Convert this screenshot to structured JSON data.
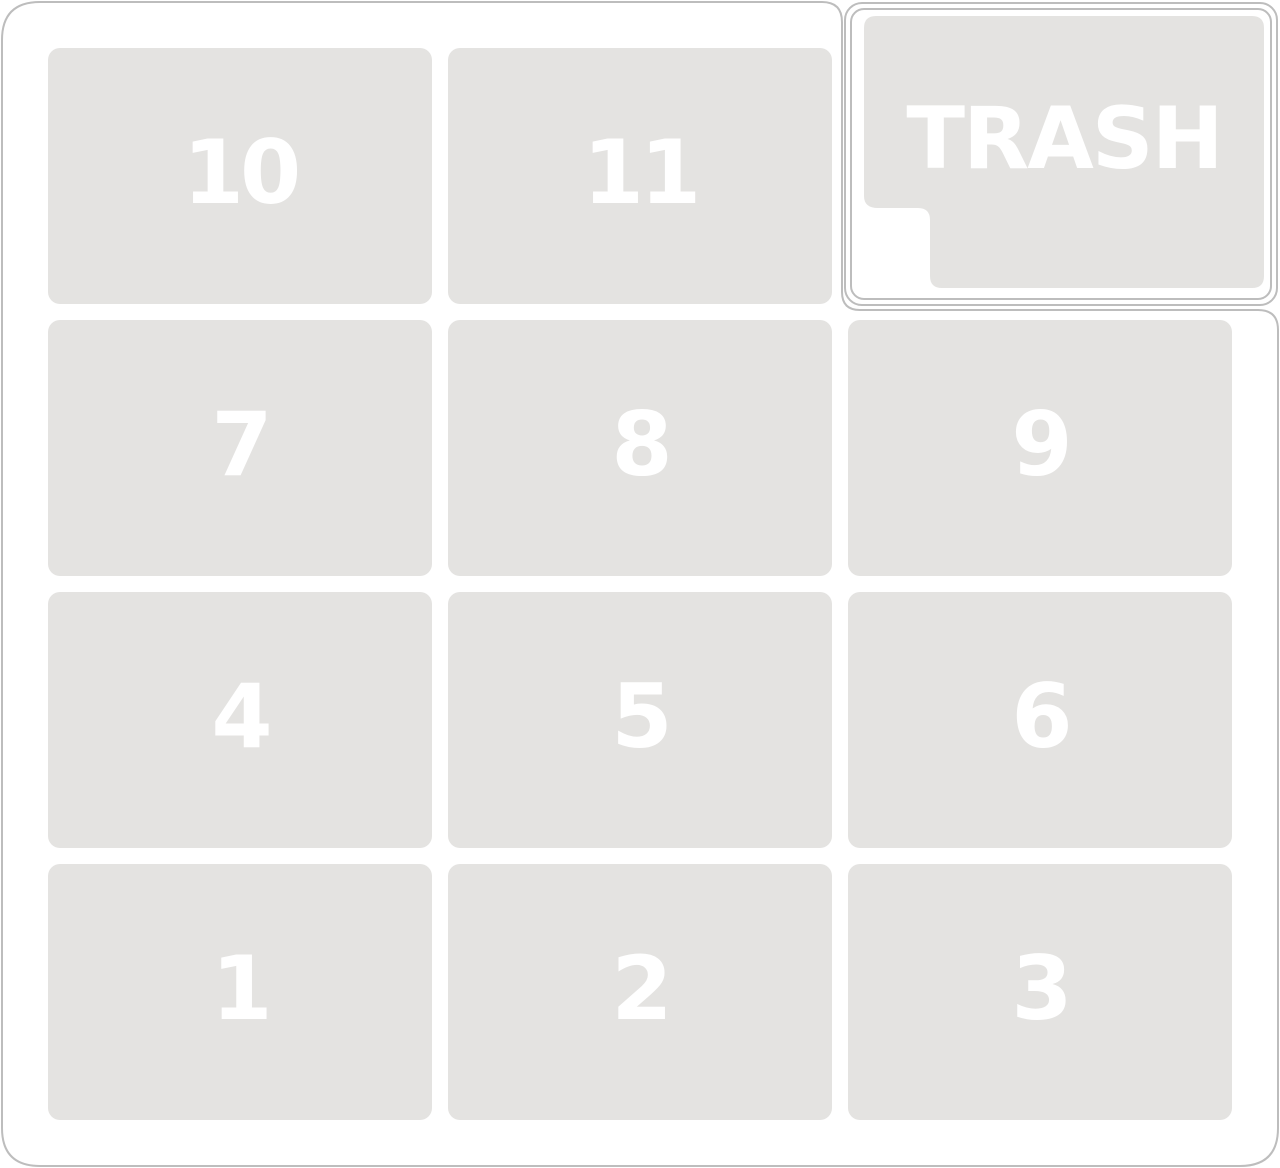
{
  "keypad": {
    "keys": [
      {
        "label": "10"
      },
      {
        "label": "11"
      },
      {
        "label": "7"
      },
      {
        "label": "8"
      },
      {
        "label": "9"
      },
      {
        "label": "4"
      },
      {
        "label": "5"
      },
      {
        "label": "6"
      },
      {
        "label": "1"
      },
      {
        "label": "2"
      },
      {
        "label": "3"
      }
    ]
  },
  "trash": {
    "label": "TRASH"
  },
  "colors": {
    "key_fill": "#e4e3e1",
    "key_text": "#ffffff",
    "outline": "#bdbdbd",
    "background": "#ffffff"
  }
}
